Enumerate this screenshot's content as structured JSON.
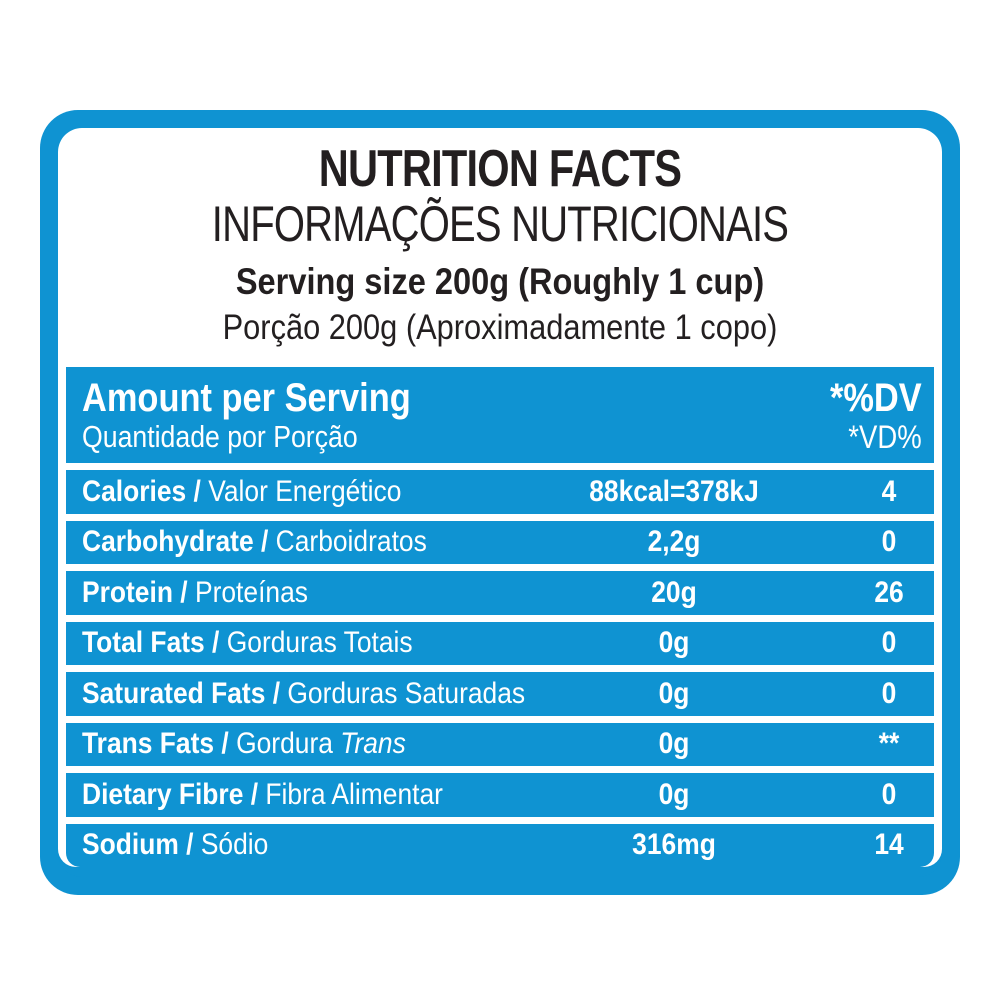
{
  "colors": {
    "brand_blue": "#0f93d2",
    "ink": "#231f20",
    "white": "#ffffff"
  },
  "header_block": {
    "title_en": "NUTRITION FACTS",
    "title_pt": "INFORMAÇÕES NUTRICIONAIS",
    "serving_en": "Serving size 200g (Roughly 1 cup)",
    "serving_pt": "Porção 200g (Aproximadamente 1 copo)"
  },
  "table": {
    "sep": " / ",
    "header": {
      "en": "Amount per Serving",
      "pt": "Quantidade por Porção",
      "dv_en": "*%DV",
      "dv_pt": "*VD%"
    },
    "rows": [
      {
        "en": "Calories",
        "pt": "Valor Energético",
        "value": "88kcal=378kJ",
        "dv": "4"
      },
      {
        "en": "Carbohydrate",
        "pt": "Carboidratos",
        "value": "2,2g",
        "dv": "0"
      },
      {
        "en": "Protein",
        "pt": "Proteínas",
        "value": "20g",
        "dv": "26"
      },
      {
        "en": "Total Fats",
        "pt": "Gorduras Totais",
        "value": "0g",
        "dv": "0"
      },
      {
        "en": "Saturated Fats",
        "pt": "Gorduras Saturadas",
        "value": "0g",
        "dv": "0"
      },
      {
        "en": "Trans Fats",
        "pt": "Gordura ",
        "pt_italic": "Trans",
        "value": "0g",
        "dv": "**"
      },
      {
        "en": "Dietary Fibre",
        "pt": "Fibra Alimentar",
        "value": "0g",
        "dv": "0"
      },
      {
        "en": "Sodium",
        "pt": "Sódio",
        "value": "316mg",
        "dv": "14"
      }
    ]
  }
}
